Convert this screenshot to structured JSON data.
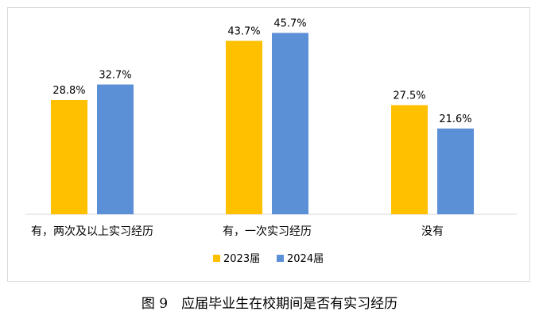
{
  "chart_data": {
    "type": "bar",
    "categories": [
      "有，两次及以上实习经历",
      "有，一次实习经历",
      "没有"
    ],
    "series": [
      {
        "name": "2023届",
        "color": "#FFC000",
        "values": [
          28.8,
          43.7,
          27.5
        ],
        "labels": [
          "28.8%",
          "43.7%",
          "27.5%"
        ]
      },
      {
        "name": "2024届",
        "color": "#5B8FD6",
        "values": [
          32.7,
          45.7,
          21.6
        ],
        "labels": [
          "32.7%",
          "45.7%",
          "21.6%"
        ]
      }
    ],
    "ylim": [
      0,
      50
    ],
    "grid": false,
    "legend": "bottom"
  },
  "caption": "图 9　应届毕业生在校期间是否有实习经历"
}
